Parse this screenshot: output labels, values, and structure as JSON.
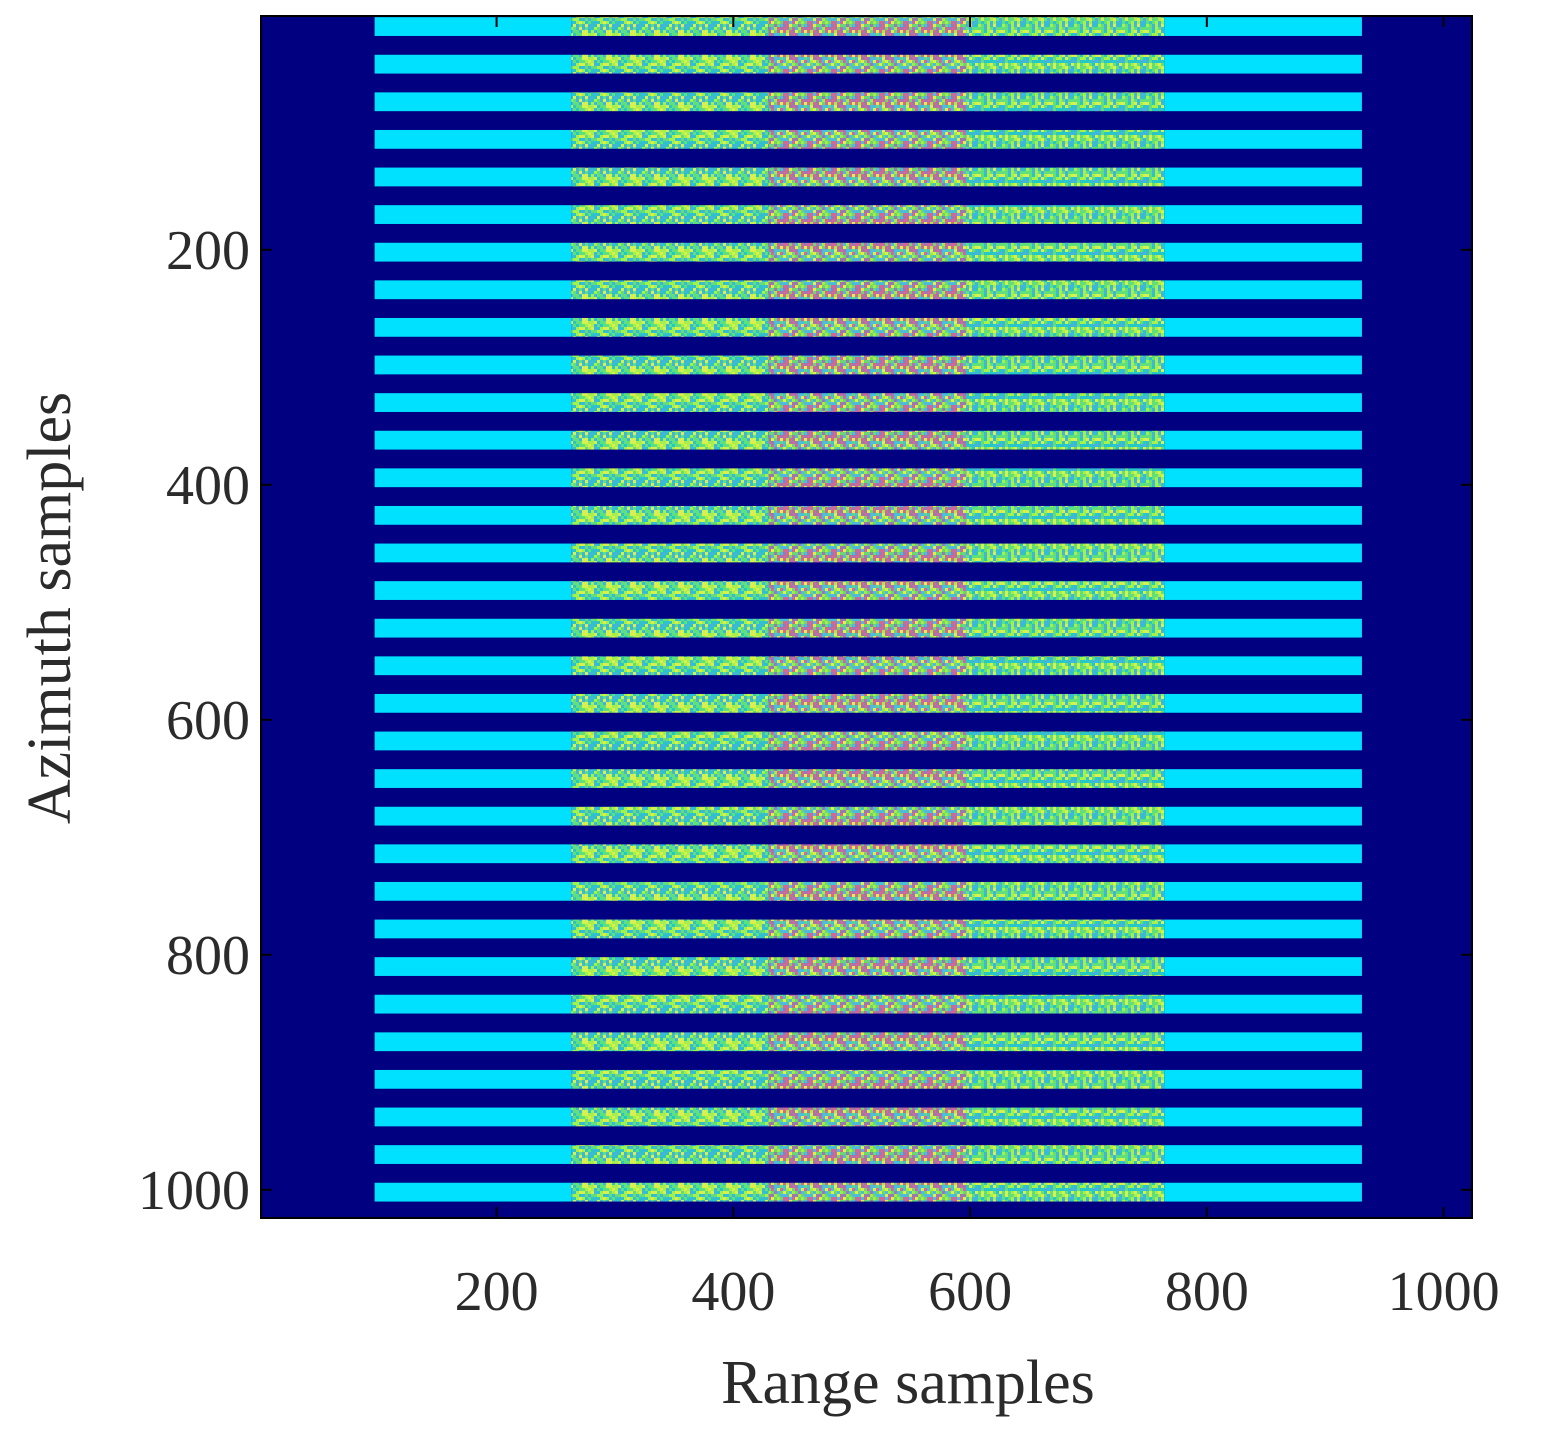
{
  "chart_data": {
    "type": "heatmap",
    "title": "",
    "xlabel": "Range samples",
    "ylabel": "Azimuth samples",
    "xlim": [
      1,
      1024
    ],
    "ylim": [
      1,
      1024
    ],
    "y_reversed": true,
    "x_ticks": [
      200,
      400,
      600,
      800,
      1000
    ],
    "x_tick_labels": [
      "200",
      "400",
      "600",
      "800",
      "1000"
    ],
    "y_ticks": [
      200,
      400,
      600,
      800,
      1000
    ],
    "y_tick_labels": [
      "200",
      "400",
      "600",
      "800",
      "1000"
    ],
    "grid": false,
    "colormap": "jet",
    "background_color": "#000080",
    "stripe_color": "#00e0ff",
    "stripes": {
      "count": 32,
      "first_center": 10,
      "spacing": 32,
      "thickness": 16,
      "x_start": 97,
      "x_end": 931
    },
    "regions": [
      {
        "x_start": 97,
        "x_end": 263,
        "pattern": "solid",
        "colors": [
          "#00e0ff"
        ]
      },
      {
        "x_start": 263,
        "x_end": 430,
        "pattern": "speckle",
        "colors": [
          "#26c7c6",
          "#60e07a",
          "#a6f04c",
          "#3fb7d8",
          "#d7f050"
        ]
      },
      {
        "x_start": 430,
        "x_end": 597,
        "pattern": "speckle",
        "colors": [
          "#a8ec3d",
          "#66d878",
          "#9a79b3",
          "#d0689a",
          "#4bbddb",
          "#e0f048"
        ]
      },
      {
        "x_start": 597,
        "x_end": 764,
        "pattern": "speckle",
        "colors": [
          "#26c7c6",
          "#60e07a",
          "#a6f04c",
          "#3fb7d8",
          "#d7f050"
        ]
      },
      {
        "x_start": 764,
        "x_end": 931,
        "pattern": "solid",
        "colors": [
          "#00e0ff"
        ]
      }
    ]
  }
}
